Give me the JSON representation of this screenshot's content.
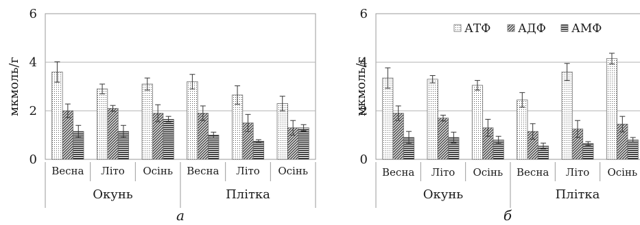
{
  "chart_data": [
    {
      "type": "bar",
      "panel_label": "а",
      "ylabel": "мкмоль/г",
      "ylim": [
        0,
        6
      ],
      "yticks": [
        0,
        2,
        4,
        6
      ],
      "grid": true,
      "legend": null,
      "groups": [
        {
          "label": "Окунь",
          "categories": [
            "Весна",
            "Літо",
            "Осінь"
          ]
        },
        {
          "label": "Плітка",
          "categories": [
            "Весна",
            "Літо",
            "Осінь"
          ]
        }
      ],
      "series": [
        {
          "name": "АТФ",
          "pattern": "dots",
          "values": [
            3.6,
            2.9,
            3.1,
            3.2,
            2.65,
            2.3
          ],
          "errors": [
            0.42,
            0.2,
            0.25,
            0.3,
            0.38,
            0.3
          ]
        },
        {
          "name": "АДФ",
          "pattern": "diagonal",
          "values": [
            2.0,
            2.1,
            1.9,
            1.9,
            1.5,
            1.3
          ],
          "errors": [
            0.28,
            0.12,
            0.35,
            0.3,
            0.35,
            0.3
          ]
        },
        {
          "name": "АМФ",
          "pattern": "horizontal",
          "values": [
            1.15,
            1.15,
            1.65,
            1.0,
            0.75,
            1.3
          ],
          "errors": [
            0.25,
            0.25,
            0.12,
            0.12,
            0.06,
            0.13
          ]
        }
      ]
    },
    {
      "type": "bar",
      "panel_label": "б",
      "ylabel": "мкмоль/г",
      "ylim": [
        0,
        6
      ],
      "yticks": [
        0,
        2,
        4,
        6
      ],
      "grid": true,
      "legend": "top-right",
      "groups": [
        {
          "label": "Окунь",
          "categories": [
            "Весна",
            "Літо",
            "Осінь"
          ]
        },
        {
          "label": "Плітка",
          "categories": [
            "Весна",
            "Літо",
            "Осінь"
          ]
        }
      ],
      "series": [
        {
          "name": "АТФ",
          "pattern": "dots",
          "values": [
            3.35,
            3.3,
            3.05,
            2.45,
            3.6,
            4.15
          ],
          "errors": [
            0.42,
            0.15,
            0.2,
            0.3,
            0.35,
            0.22
          ]
        },
        {
          "name": "АДФ",
          "pattern": "diagonal",
          "values": [
            1.9,
            1.7,
            1.3,
            1.15,
            1.25,
            1.45
          ],
          "errors": [
            0.3,
            0.12,
            0.35,
            0.32,
            0.35,
            0.32
          ]
        },
        {
          "name": "АМФ",
          "pattern": "horizontal",
          "values": [
            0.9,
            0.9,
            0.8,
            0.55,
            0.65,
            0.8
          ],
          "errors": [
            0.25,
            0.22,
            0.15,
            0.12,
            0.08,
            0.1
          ]
        }
      ]
    }
  ]
}
